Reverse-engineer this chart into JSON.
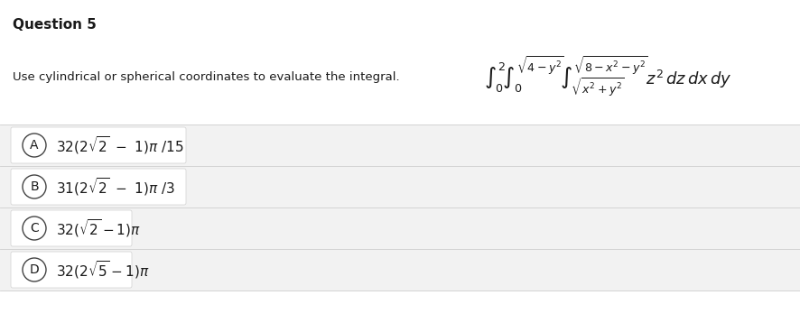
{
  "title": "Question 5",
  "question_text": "Use cylindrical or spherical coordinates to evaluate the integral.",
  "integral_formula": "$\\int_0^2\\!\\int_0^{\\sqrt{4-y^2}}\\!\\int_{\\sqrt{x^2+y^2}}^{\\sqrt{8-x^2-y^2}} z^2\\,dz\\,dx\\,dy$",
  "options": [
    {
      "label": "A",
      "text": "$32(2\\sqrt{2}\\ -\\ 1)\\pi\\ /15$"
    },
    {
      "label": "B",
      "text": "$31(2\\sqrt{2}\\ -\\ 1)\\pi\\ /3$"
    },
    {
      "label": "C",
      "text": "$32(\\sqrt{2}-1)\\pi$"
    },
    {
      "label": "D",
      "text": "$32(2\\sqrt{5}-1)\\pi$"
    }
  ],
  "bg_color": "#ffffff",
  "option_bg_color": "#f2f2f2",
  "white_bg": "#ffffff",
  "title_fontsize": 11,
  "body_fontsize": 9.5,
  "integral_fontsize": 13,
  "option_fontsize": 11,
  "text_color": "#1a1a1a",
  "border_color": "#d0d0d0",
  "circle_color": "#444444"
}
